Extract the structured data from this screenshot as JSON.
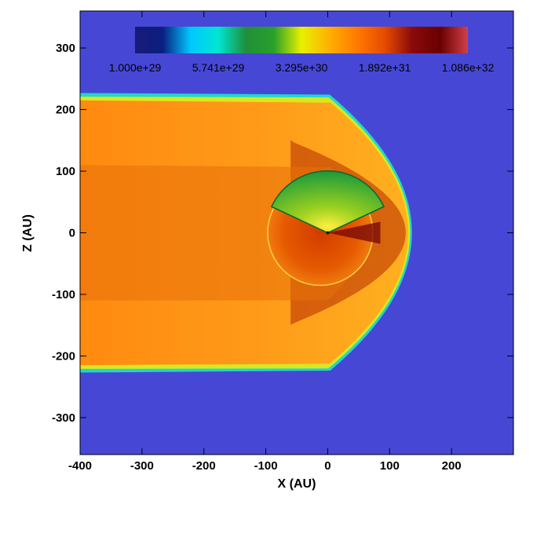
{
  "chart_data": {
    "type": "heatmap",
    "title": "",
    "xlabel": "X (AU)",
    "ylabel": "Z (AU)",
    "xlim": [
      -400,
      300
    ],
    "ylim": [
      -360,
      360
    ],
    "x_ticks": [
      -400,
      -300,
      -200,
      -100,
      0,
      100,
      200
    ],
    "y_ticks": [
      -300,
      -200,
      -100,
      0,
      100,
      200,
      300
    ],
    "x_tick_labels": [
      "-400",
      "-300",
      "-200",
      "-100",
      "0",
      "100",
      "200"
    ],
    "y_tick_labels": [
      "-300",
      "-200",
      "-100",
      "0",
      "100",
      "200",
      "300"
    ],
    "colorbar": {
      "scale": "log",
      "range": [
        1e+29,
        1.086e+32
      ],
      "tick_labels": [
        "1.000e+29",
        "5.741e+29",
        "3.295e+30",
        "1.892e+31",
        "1.086e+32"
      ],
      "colors": [
        "#1a1a7a",
        "#0a1f80",
        "#00c8ff",
        "#00e6d2",
        "#1f8f3a",
        "#2aa02a",
        "#e8f000",
        "#ffb000",
        "#ff7a00",
        "#e64b00",
        "#8a0a0a",
        "#6a0000",
        "#d0404a"
      ]
    },
    "background_color": "#4747d6",
    "features": {
      "outer_boundary": {
        "nose_x": 130,
        "max_z": 215,
        "tail_x": -400
      },
      "termination_shock": {
        "radius": 85
      },
      "polar_sectors": {
        "radius": 100,
        "north_center": [
          0,
          50
        ],
        "south_center": [
          0,
          -50
        ]
      }
    }
  }
}
